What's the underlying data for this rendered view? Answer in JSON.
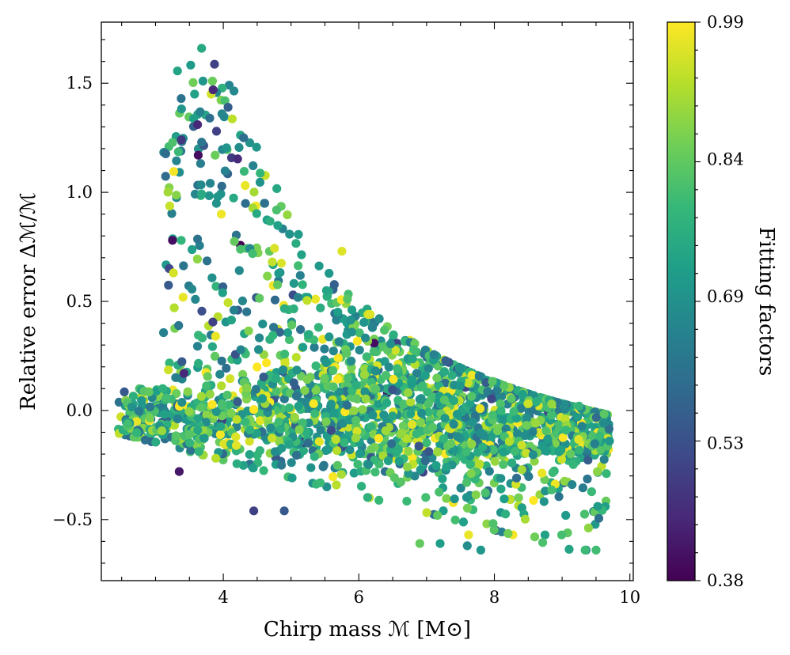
{
  "chart_data": {
    "type": "scatter",
    "title": "",
    "xlabel": "Chirp mass ℳ [M⊙]",
    "ylabel": "Relative error Δℳ/ℳ",
    "colorbar_label": "Fitting factors",
    "xlim": [
      2.2,
      10.05
    ],
    "ylim": [
      -0.78,
      1.78
    ],
    "x_ticks": [
      4,
      6,
      8,
      10
    ],
    "x_tick_labels": [
      "4",
      "6",
      "8",
      "10"
    ],
    "y_ticks": [
      -0.5,
      0.0,
      0.5,
      1.0,
      1.5
    ],
    "y_tick_labels": [
      "−0.5",
      "0.0",
      "0.5",
      "1.0",
      "1.5"
    ],
    "color_range": [
      0.38,
      0.99
    ],
    "colorbar_ticks": [
      0.38,
      0.53,
      0.69,
      0.84,
      0.99
    ],
    "colorbar_tick_labels": [
      "0.38",
      "0.53",
      "0.69",
      "0.84",
      "0.99"
    ],
    "colormap": "viridis",
    "colormap_stops": [
      "#440154",
      "#482878",
      "#3e4989",
      "#31688e",
      "#26828e",
      "#1f9e89",
      "#35b779",
      "#6ece58",
      "#b5de2b",
      "#fde725"
    ],
    "grid": false,
    "legend": "none",
    "sampling": {
      "n_points": 2200,
      "x_min": 2.45,
      "x_max": 9.7,
      "upper_envelope_A": 6.6,
      "upper_envelope_x0": 1.7,
      "upper_envelope_c": 0.42,
      "lower_bound_min": -0.64
    },
    "points": [
      {
        "x": 3.68,
        "y": 1.66,
        "c": 0.75
      },
      {
        "x": 3.7,
        "y": 1.51,
        "c": 0.7
      },
      {
        "x": 3.84,
        "y": 1.51,
        "c": 0.85
      },
      {
        "x": 3.82,
        "y": 1.45,
        "c": 0.95
      },
      {
        "x": 3.85,
        "y": 1.47,
        "c": 0.45
      },
      {
        "x": 3.98,
        "y": 1.36,
        "c": 0.66
      },
      {
        "x": 4.07,
        "y": 1.39,
        "c": 0.56
      },
      {
        "x": 3.8,
        "y": 1.34,
        "c": 0.6
      },
      {
        "x": 3.62,
        "y": 1.31,
        "c": 0.45
      },
      {
        "x": 3.9,
        "y": 1.28,
        "c": 0.5
      },
      {
        "x": 3.38,
        "y": 1.24,
        "c": 0.48
      },
      {
        "x": 3.68,
        "y": 1.23,
        "c": 0.62
      },
      {
        "x": 4.3,
        "y": 1.25,
        "c": 0.6
      },
      {
        "x": 3.63,
        "y": 1.17,
        "c": 0.4
      },
      {
        "x": 3.88,
        "y": 1.17,
        "c": 0.85
      },
      {
        "x": 3.25,
        "y": 0.78,
        "c": 0.4
      },
      {
        "x": 3.38,
        "y": 0.78,
        "c": 0.78
      },
      {
        "x": 3.35,
        "y": -0.28,
        "c": 0.42
      },
      {
        "x": 3.42,
        "y": 0.17,
        "c": 0.45
      },
      {
        "x": 4.9,
        "y": -0.46,
        "c": 0.55
      },
      {
        "x": 4.45,
        "y": -0.46,
        "c": 0.5
      },
      {
        "x": 7.62,
        "y": -0.57,
        "c": 0.97
      },
      {
        "x": 7.8,
        "y": -0.64,
        "c": 0.7
      },
      {
        "x": 7.2,
        "y": -0.61,
        "c": 0.72
      },
      {
        "x": 6.9,
        "y": -0.61,
        "c": 0.84
      },
      {
        "x": 7.6,
        "y": -0.62,
        "c": 0.68
      },
      {
        "x": 9.25,
        "y": 0.02,
        "c": 0.78
      },
      {
        "x": 9.7,
        "y": -0.14,
        "c": 0.7
      },
      {
        "x": 6.15,
        "y": 0.44,
        "c": 0.96
      },
      {
        "x": 5.75,
        "y": 0.73,
        "c": 0.96
      }
    ]
  }
}
